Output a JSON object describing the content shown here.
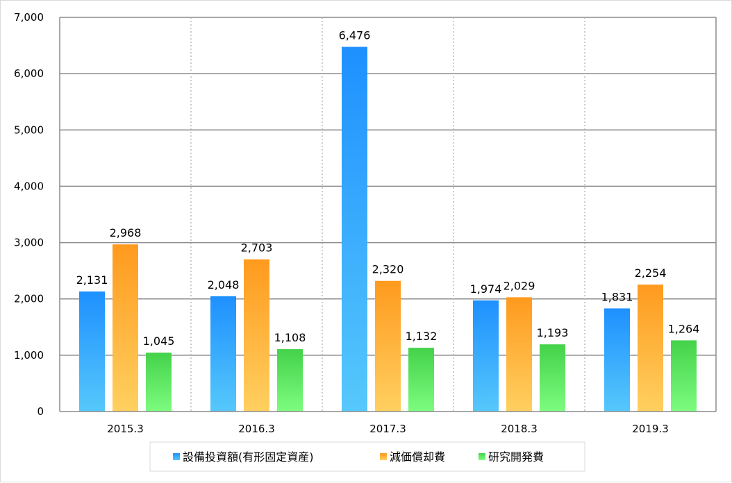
{
  "chart_data": {
    "type": "bar",
    "categories": [
      "2015.3",
      "2016.3",
      "2017.3",
      "2018.3",
      "2019.3"
    ],
    "series": [
      {
        "name": "設備投資額(有形固定資産)",
        "values": [
          2131,
          2048,
          6476,
          1974,
          1831
        ],
        "color": "#1e90ff",
        "color_light": "#56c8fb"
      },
      {
        "name": "減価償却費",
        "values": [
          2968,
          2703,
          2320,
          2029,
          2254
        ],
        "color": "#ff9a1e",
        "color_light": "#ffd060"
      },
      {
        "name": "研究開発費",
        "values": [
          1045,
          1108,
          1132,
          1193,
          1264
        ],
        "color": "#44d24a",
        "color_light": "#7dfc7f"
      }
    ],
    "data_labels": [
      [
        "2,131",
        "2,048",
        "6,476",
        "1,974",
        "1,831"
      ],
      [
        "2,968",
        "2,703",
        "2,320",
        "2,029",
        "2,254"
      ],
      [
        "1,045",
        "1,108",
        "1,132",
        "1,193",
        "1,264"
      ]
    ],
    "y_ticks": [
      0,
      1000,
      2000,
      3000,
      4000,
      5000,
      6000,
      7000
    ],
    "y_tick_labels": [
      "0",
      "1,000",
      "2,000",
      "3,000",
      "4,000",
      "5,000",
      "6,000",
      "7,000"
    ],
    "ylim": [
      0,
      7000
    ],
    "grid": "horizontal solid, vertical dotted",
    "legend_position": "bottom"
  }
}
